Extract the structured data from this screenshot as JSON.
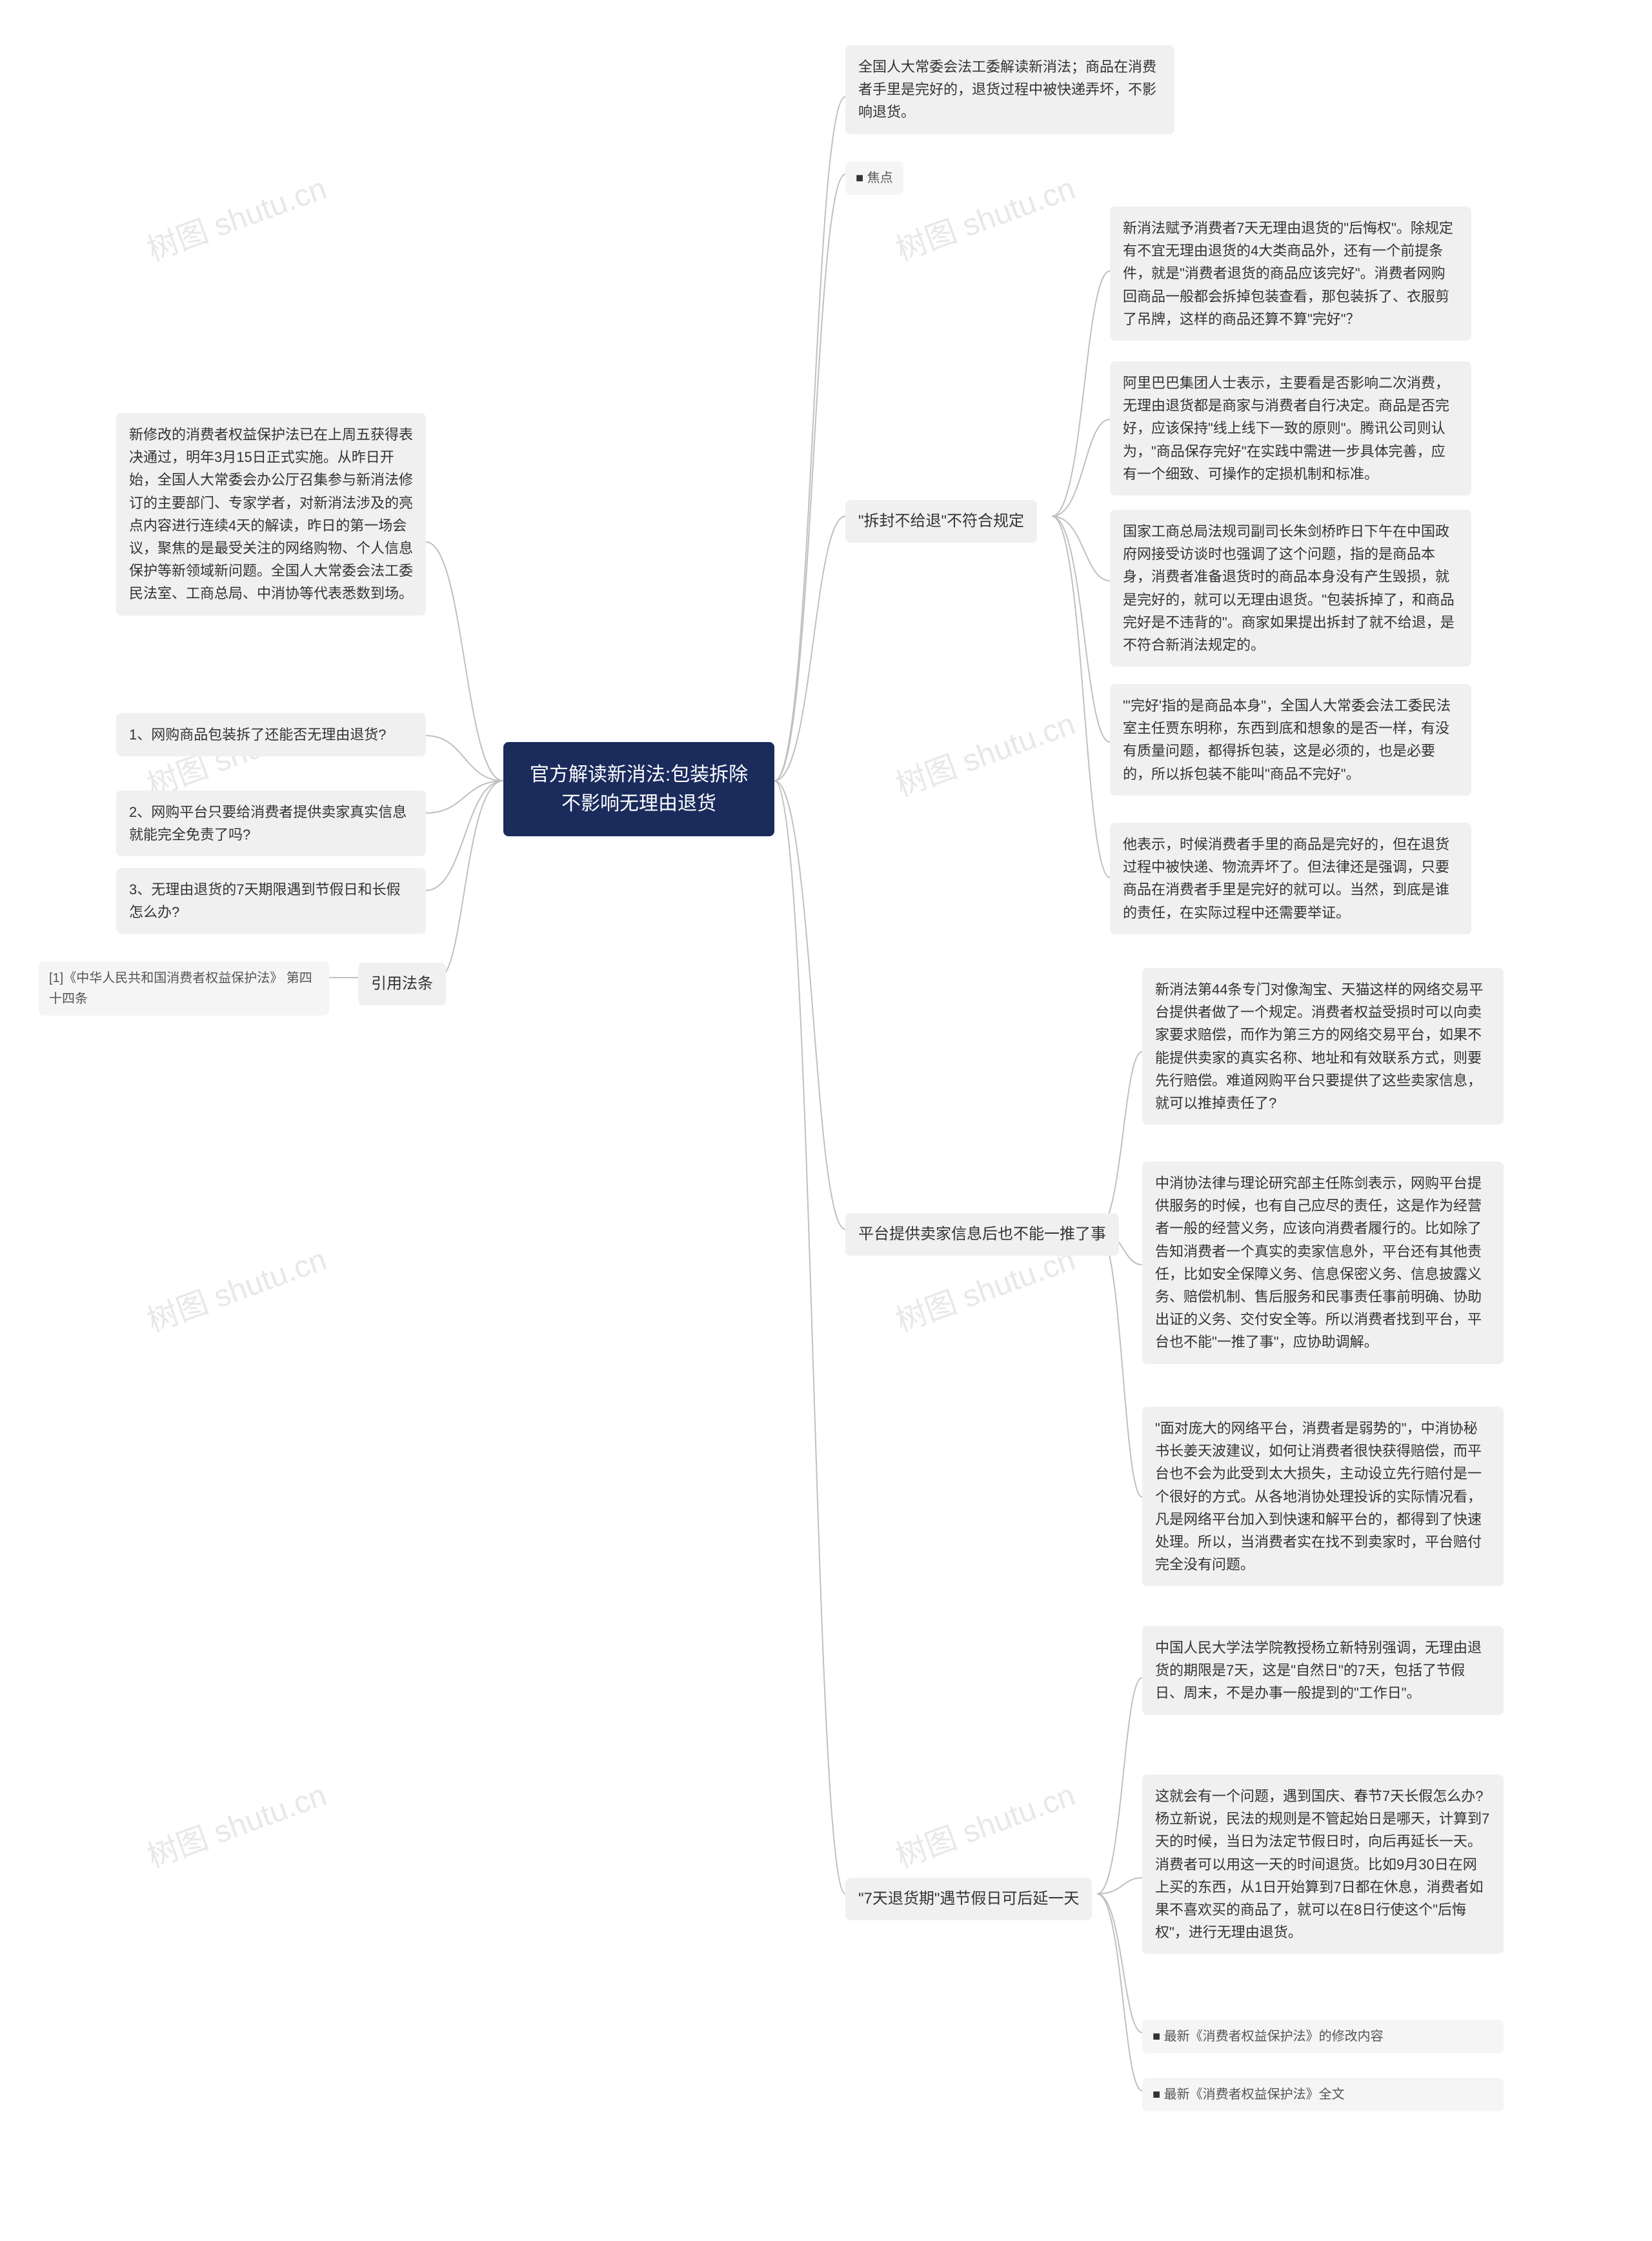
{
  "center": {
    "title": "官方解读新消法:包装拆除\n不影响无理由退货"
  },
  "left": {
    "intro": "新修改的消费者权益保护法已在上周五获得表决通过，明年3月15日正式实施。从昨日开始，全国人大常委会办公厅召集参与新消法修订的主要部门、专家学者，对新消法涉及的亮点内容进行连续4天的解读，昨日的第一场会议，聚焦的是最受关注的网络购物、个人信息保护等新领域新问题。全国人大常委会法工委民法室、工商总局、中消协等代表悉数到场。",
    "q1": "1、网购商品包装拆了还能否无理由退货?",
    "q2": "2、网购平台只要给消费者提供卖家真实信息就能完全免责了吗?",
    "q3": "3、无理由退货的7天期限遇到节假日和长假怎么办?",
    "citation_ref": "[1]《中华人民共和国消费者权益保护法》 第四十四条",
    "citation_label": "引用法条"
  },
  "right_top": {
    "intro": "全国人大常委会法工委解读新消法；商品在消费者手里是完好的，退货过程中被快递弄坏，不影响退货。",
    "focus_label": "焦点"
  },
  "section1": {
    "title": "\"拆封不给退\"不符合规定",
    "p1": "新消法赋予消费者7天无理由退货的\"后悔权\"。除规定有不宜无理由退货的4大类商品外，还有一个前提条件，就是\"消费者退货的商品应该完好\"。消费者网购回商品一般都会拆掉包装查看，那包装拆了、衣服剪了吊牌，这样的商品还算不算\"完好\"？",
    "p2": "阿里巴巴集团人士表示，主要看是否影响二次消费，无理由退货都是商家与消费者自行决定。商品是否完好，应该保持\"线上线下一致的原则\"。腾讯公司则认为，\"商品保存完好\"在实践中需进一步具体完善，应有一个细致、可操作的定损机制和标准。",
    "p3": "国家工商总局法规司副司长朱剑桥昨日下午在中国政府网接受访谈时也强调了这个问题，指的是商品本身，消费者准备退货时的商品本身没有产生毁损，就是完好的，就可以无理由退货。\"包装拆掉了，和商品完好是不违背的\"。商家如果提出拆封了就不给退，是不符合新消法规定的。",
    "p4": "\"'完好'指的是商品本身\"，全国人大常委会法工委民法室主任贾东明称，东西到底和想象的是否一样，有没有质量问题，都得拆包装，这是必须的，也是必要的，所以拆包装不能叫\"商品不完好\"。",
    "p5": "他表示，时候消费者手里的商品是完好的，但在退货过程中被快递、物流弄坏了。但法律还是强调，只要商品在消费者手里是完好的就可以。当然，到底是谁的责任，在实际过程中还需要举证。"
  },
  "section2": {
    "title": "平台提供卖家信息后也不能一推了事",
    "p1": "新消法第44条专门对像淘宝、天猫这样的网络交易平台提供者做了一个规定。消费者权益受损时可以向卖家要求赔偿，而作为第三方的网络交易平台，如果不能提供卖家的真实名称、地址和有效联系方式，则要先行赔偿。难道网购平台只要提供了这些卖家信息，就可以推掉责任了?",
    "p2": "中消协法律与理论研究部主任陈剑表示，网购平台提供服务的时候，也有自己应尽的责任，这是作为经营者一般的经营义务，应该向消费者履行的。比如除了告知消费者一个真实的卖家信息外，平台还有其他责任，比如安全保障义务、信息保密义务、信息披露义务、赔偿机制、售后服务和民事责任事前明确、协助出证的义务、交付安全等。所以消费者找到平台，平台也不能\"一推了事\"，应协助调解。",
    "p3": "\"面对庞大的网络平台，消费者是弱势的\"，中消协秘书长姜天波建议，如何让消费者很快获得赔偿，而平台也不会为此受到太大损失，主动设立先行赔付是一个很好的方式。从各地消协处理投诉的实际情况看，凡是网络平台加入到快速和解平台的，都得到了快速处理。所以，当消费者实在找不到卖家时，平台赔付完全没有问题。"
  },
  "section3": {
    "title": "\"7天退货期\"遇节假日可后延一天",
    "p1": "中国人民大学法学院教授杨立新特别强调，无理由退货的期限是7天，这是\"自然日\"的7天，包括了节假日、周末，不是办事一般提到的\"工作日\"。",
    "p2": "这就会有一个问题，遇到国庆、春节7天长假怎么办?杨立新说，民法的规则是不管起始日是哪天，计算到7天的时候，当日为法定节假日时，向后再延长一天。消费者可以用这一天的时间退货。比如9月30日在网上买的东西，从1日开始算到7日都在休息，消费者如果不喜欢买的商品了，就可以在8日行使这个\"后悔权\"，进行无理由退货。",
    "bullet1": "最新《消费者权益保护法》的修改内容",
    "bullet2": "最新《消费者权益保护法》全文"
  },
  "watermarks": [
    "树图 shutu.cn"
  ],
  "styling": {
    "center_bg": "#1a2b5c",
    "center_color": "#ffffff",
    "node_bg": "#f0f0f0",
    "node_color": "#333333",
    "connector_color": "#c0c0c0",
    "watermark_color": "#e8e8e8",
    "font_family": "Microsoft YaHei",
    "center_fontsize": 30,
    "node_fontsize": 22,
    "small_fontsize": 20
  }
}
